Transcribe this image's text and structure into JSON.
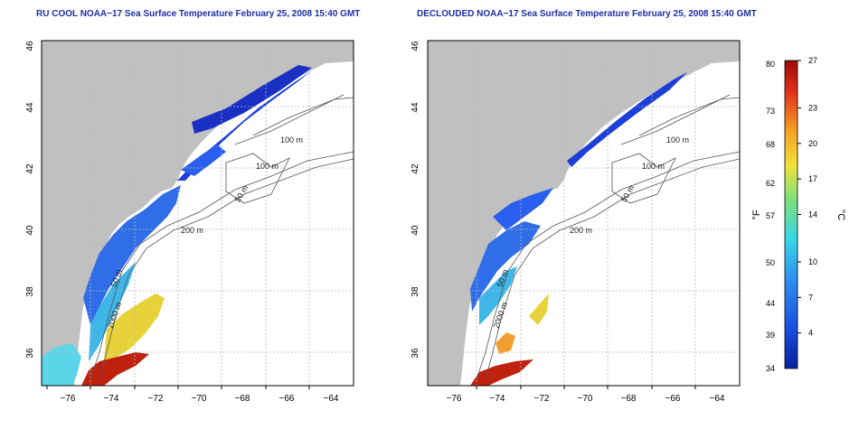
{
  "left_panel": {
    "title": "RU COOL NOAA−17 Sea Surface Temperature February 25, 2008 15:40 GMT",
    "x_ticks": [
      "−76",
      "−74",
      "−72",
      "−70",
      "−68",
      "−66",
      "−64"
    ],
    "y_ticks": [
      "36",
      "38",
      "40",
      "42",
      "44",
      "46"
    ],
    "contour_labels": [
      "100 m",
      "100 m",
      "50 m",
      "200 m",
      "50 m",
      "2000 m"
    ]
  },
  "right_panel": {
    "title": "DECLOUDED NOAA−17 Sea Surface Temperature February 25, 2008 15:40 GMT",
    "x_ticks": [
      "−76",
      "−74",
      "−72",
      "−70",
      "−68",
      "−66",
      "−64"
    ],
    "y_ticks": [
      "36",
      "38",
      "40",
      "42",
      "44",
      "46"
    ],
    "contour_labels": [
      "100 m",
      "100 m",
      "50 m",
      "200 m",
      "50 m",
      "2000 m"
    ]
  },
  "colorbar": {
    "unit_left": "°F",
    "unit_right": "°C",
    "fahrenheit_ticks": [
      "80",
      "73",
      "68",
      "62",
      "57",
      "50",
      "44",
      "39",
      "34"
    ],
    "celsius_ticks": [
      "27",
      "23",
      "20",
      "17",
      "14",
      "10",
      "7",
      "4"
    ],
    "celsius_values": [
      27,
      23,
      20,
      17,
      14,
      10,
      7,
      4
    ],
    "range_c": [
      1,
      27
    ],
    "colors": [
      "#0b1f9e",
      "#1a4fe0",
      "#2d8cf0",
      "#38d6e6",
      "#7ee07a",
      "#f2e23a",
      "#f59a22",
      "#e0301c",
      "#9e0a0a"
    ]
  },
  "map_colors": {
    "land": "#c0c0c0",
    "grid": "#b8b8b8",
    "contour": "#555555"
  }
}
